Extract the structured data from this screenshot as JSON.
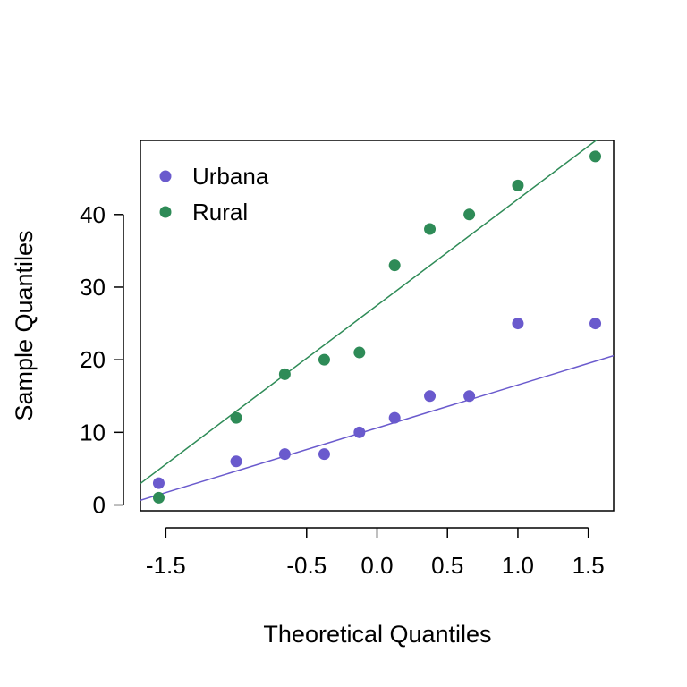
{
  "chart_data": {
    "type": "scatter",
    "title": "",
    "xlabel": "Theoretical Quantiles",
    "ylabel": "Sample Quantiles",
    "xlim": [
      -1.68,
      1.68
    ],
    "ylim": [
      -0.8,
      50.2
    ],
    "x_ticks": [
      -1.5,
      -0.5,
      0.0,
      0.5,
      1.0,
      1.5
    ],
    "x_tick_labels": [
      "-1.5",
      "-0.5",
      "0.0",
      "0.5",
      "1.0",
      "1.5"
    ],
    "y_ticks": [
      0,
      10,
      20,
      30,
      40
    ],
    "y_tick_labels": [
      "0",
      "10",
      "20",
      "30",
      "40"
    ],
    "grid": false,
    "legend_position": "top-left",
    "series": [
      {
        "name": "Urbana",
        "color": "#6a5acd",
        "x": [
          -1.55,
          -1.0,
          -0.655,
          -0.375,
          -0.125,
          0.125,
          0.375,
          0.655,
          1.0,
          1.55
        ],
        "y": [
          3,
          6,
          7,
          7,
          10,
          12,
          15,
          15,
          25,
          25
        ],
        "line": {
          "intercept": 10.6,
          "slope": 5.93
        }
      },
      {
        "name": "Rural",
        "color": "#2e8b57",
        "x": [
          -1.55,
          -1.0,
          -0.655,
          -0.375,
          -0.125,
          0.125,
          0.375,
          0.655,
          1.0,
          1.55
        ],
        "y": [
          1,
          12,
          18,
          20,
          21,
          33,
          38,
          40,
          44,
          48
        ],
        "line": {
          "intercept": 27.5,
          "slope": 14.6
        }
      }
    ]
  }
}
